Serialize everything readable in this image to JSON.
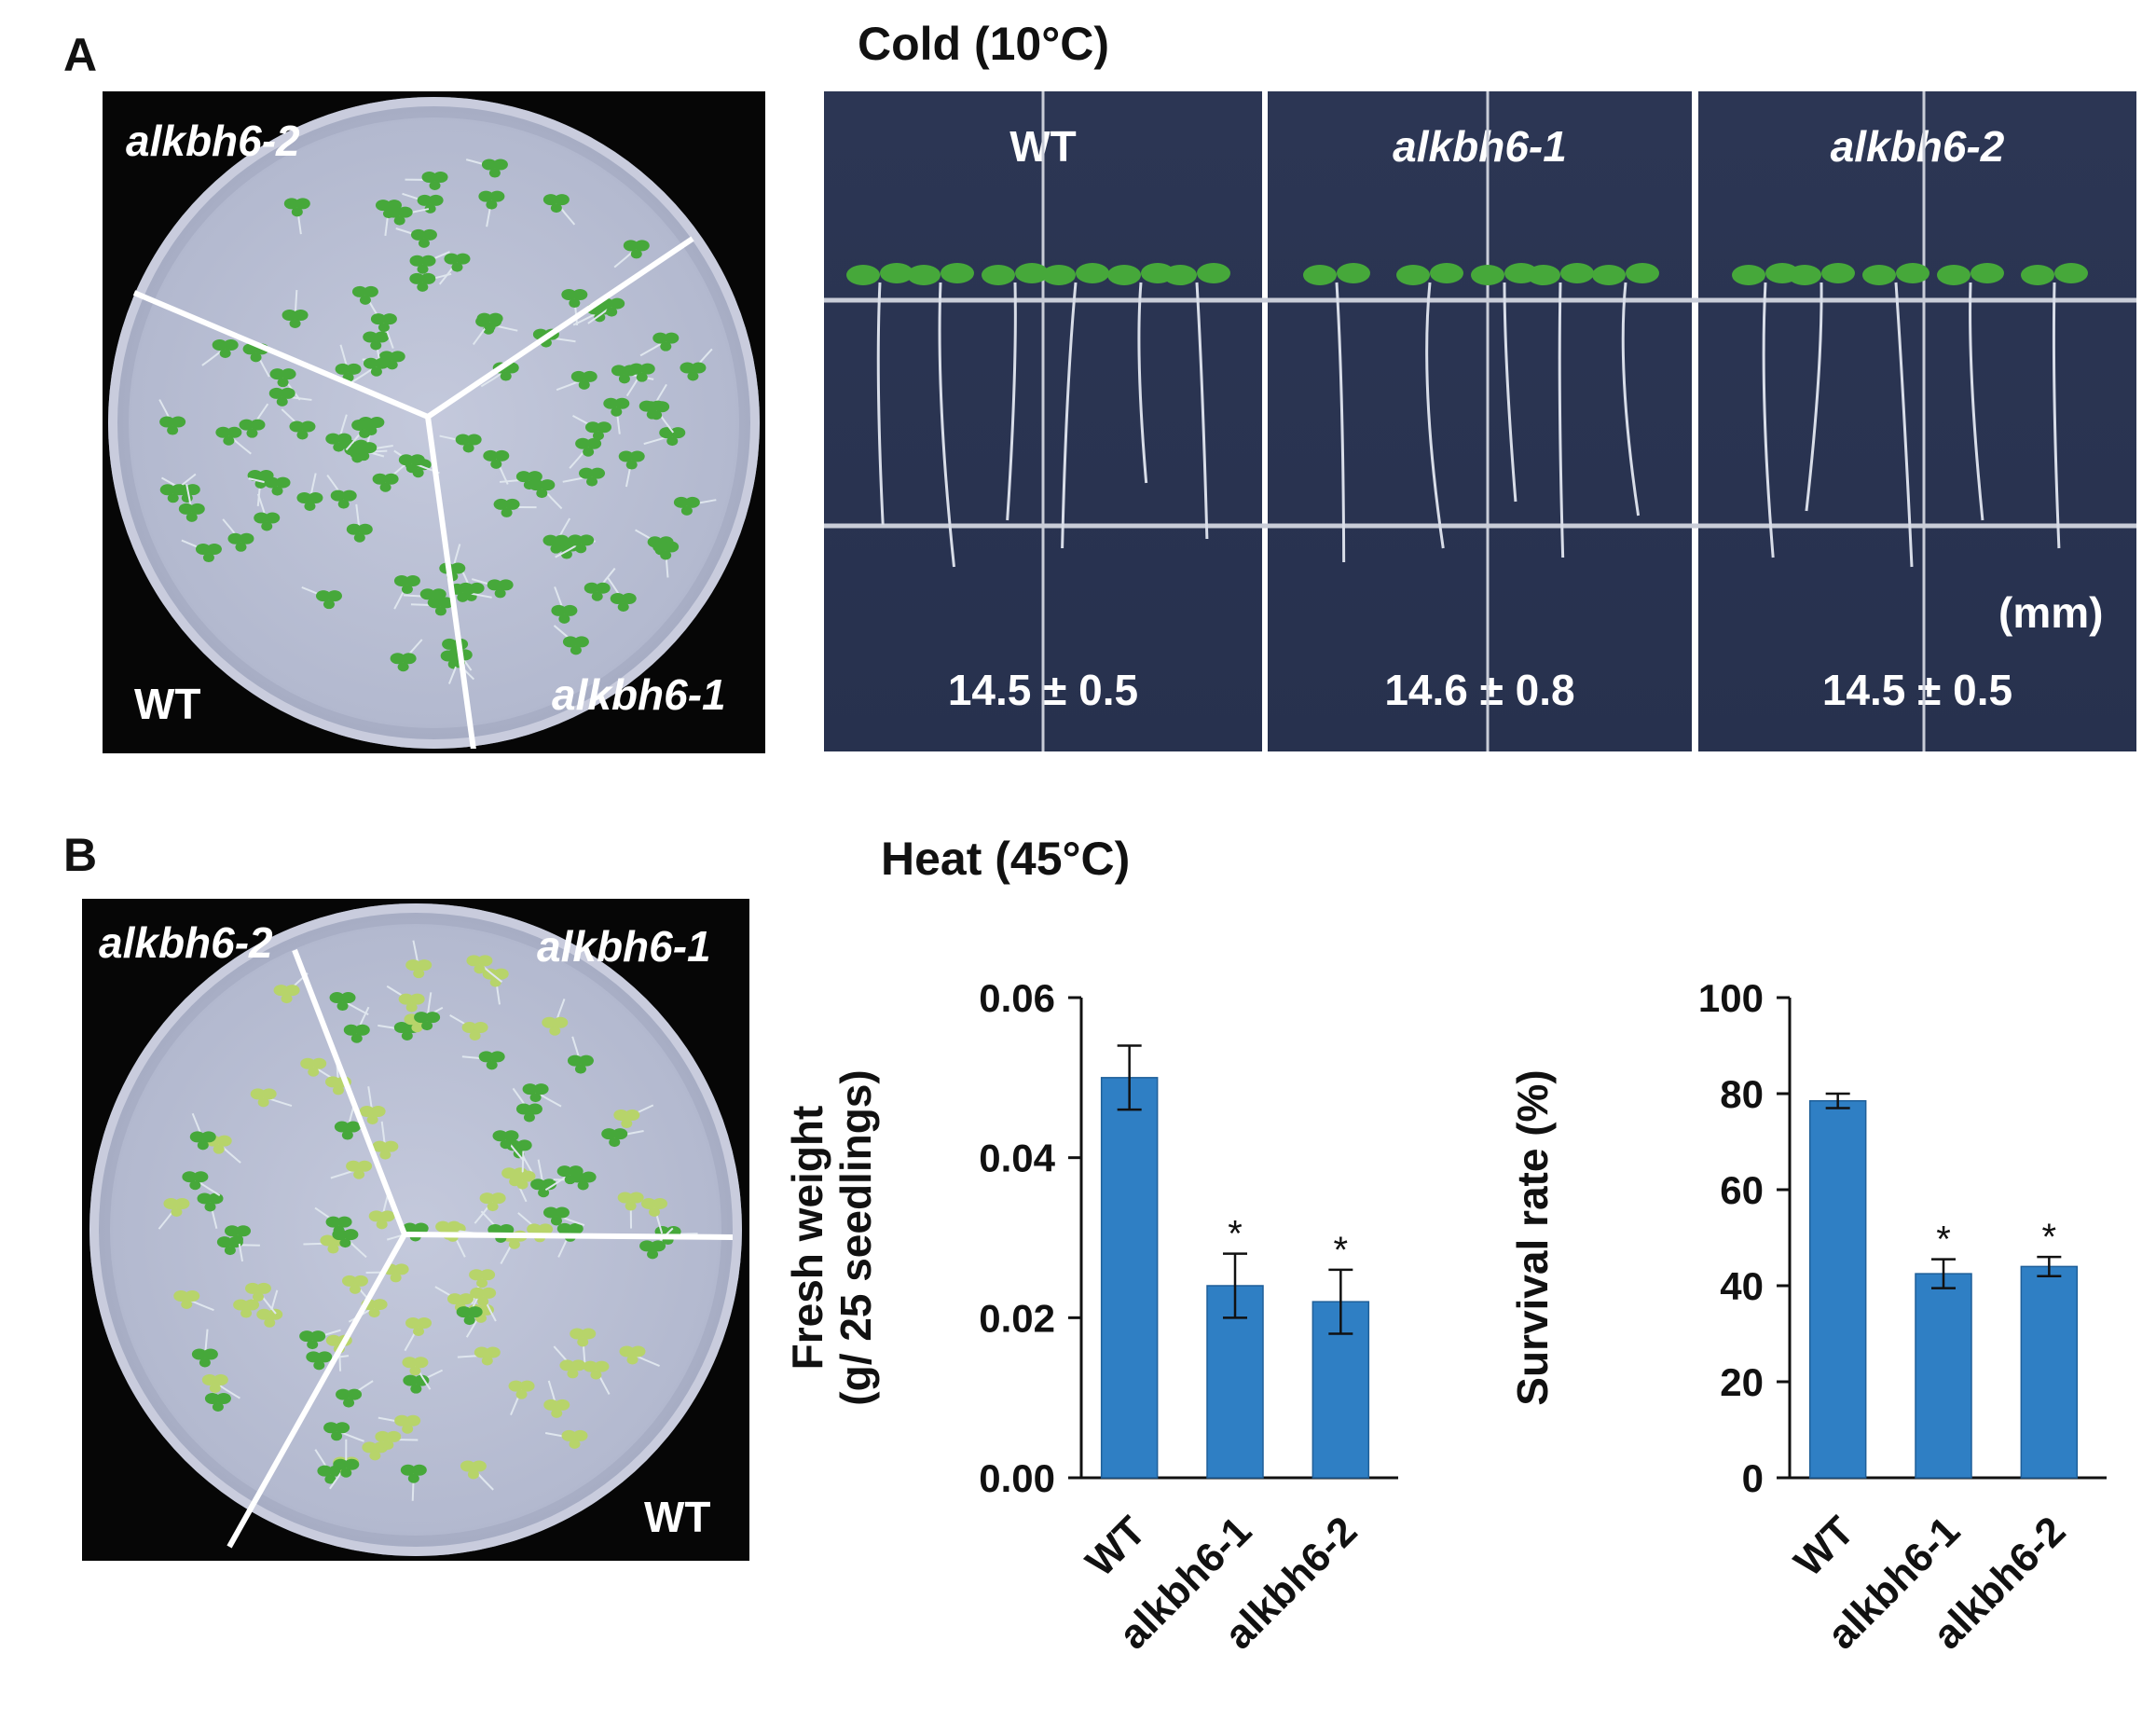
{
  "panel_a": {
    "letter": "A",
    "condition": "Cold (10°C)",
    "plate_labels": {
      "top_left": "alkbh6-2",
      "bottom_left": "WT",
      "bottom_right": "alkbh6-1"
    },
    "lanes": [
      {
        "title": "WT",
        "value": "14.5 ± 0.5"
      },
      {
        "title": "alkbh6-1",
        "value": "14.6 ± 0.8"
      },
      {
        "title": "alkbh6-2",
        "value": "14.5 ± 0.5"
      }
    ],
    "unit_label": "(mm)"
  },
  "panel_b": {
    "letter": "B",
    "condition": "Heat (45°C)",
    "plate_labels": {
      "top_left": "alkbh6-2",
      "top_right": "alkbh6-1",
      "bottom_right": "WT"
    }
  },
  "colors": {
    "bar": "#2f7fc4",
    "bar_edge": "#1f5f99",
    "leaf": "#46a83a",
    "leaf_pale": "#b7d46a",
    "grid_line": "#c9cdd8"
  },
  "chart_data": [
    {
      "type": "bar",
      "categories": [
        "WT",
        "alkbh6-1",
        "alkbh6-2"
      ],
      "values": [
        0.05,
        0.024,
        0.022
      ],
      "errors": [
        0.004,
        0.004,
        0.004
      ],
      "significance": [
        "",
        "*",
        "*"
      ],
      "ylabel_lines": [
        "Fresh weight",
        "(g/ 25 seedlings)"
      ],
      "ylim": [
        0,
        0.06
      ],
      "yticks": [
        0.0,
        0.02,
        0.04,
        0.06
      ],
      "ytick_labels": [
        "0.00",
        "0.02",
        "0.04",
        "0.06"
      ]
    },
    {
      "type": "bar",
      "categories": [
        "WT",
        "alkbh6-1",
        "alkbh6-2"
      ],
      "values": [
        78.5,
        42.5,
        44
      ],
      "errors": [
        1.5,
        3,
        2
      ],
      "significance": [
        "",
        "*",
        "*"
      ],
      "ylabel_lines": [
        "Survival rate (%)"
      ],
      "ylim": [
        0,
        100
      ],
      "yticks": [
        0,
        20,
        40,
        60,
        80,
        100
      ],
      "ytick_labels": [
        "0",
        "20",
        "40",
        "60",
        "80",
        "100"
      ]
    }
  ]
}
